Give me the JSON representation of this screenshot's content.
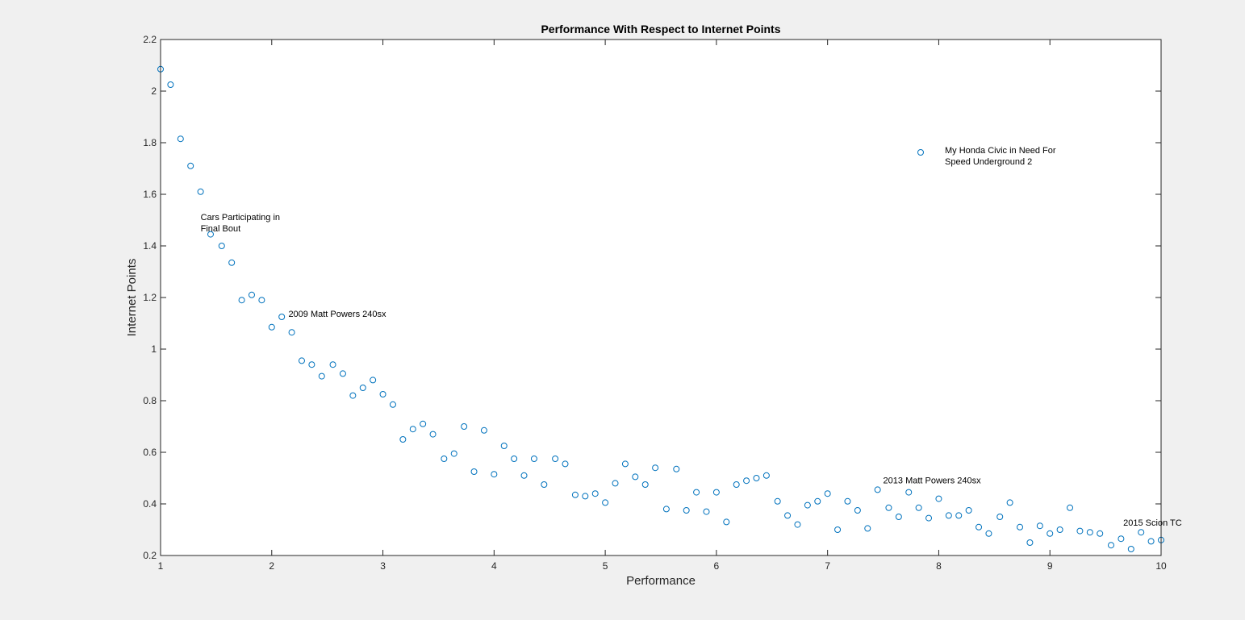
{
  "chart_data": {
    "type": "scatter",
    "title": "Performance With Respect to Internet Points",
    "xlabel": "Performance",
    "ylabel": "Internet Points",
    "xlim": [
      1,
      10
    ],
    "ylim": [
      0.2,
      2.2
    ],
    "xticks": [
      1,
      2,
      3,
      4,
      5,
      6,
      7,
      8,
      9,
      10
    ],
    "yticks": [
      0.2,
      0.4,
      0.6,
      0.8,
      1,
      1.2,
      1.4,
      1.6,
      1.8,
      2,
      2.2
    ],
    "xtick_labels": [
      "1",
      "2",
      "3",
      "4",
      "5",
      "6",
      "7",
      "8",
      "9",
      "10"
    ],
    "ytick_labels": [
      "0.2",
      "0.4",
      "0.6",
      "0.8",
      "1",
      "1.2",
      "1.4",
      "1.6",
      "1.8",
      "2",
      "2.2"
    ],
    "grid": false,
    "marker_color": "#0072bd",
    "legend_position": "top-right",
    "series": [
      {
        "name": "My Honda Civic in Need For Speed Underground 2",
        "legend_lines": [
          "My Honda Civic in Need For",
          "Speed Underground 2"
        ],
        "points": [
          [
            1.0,
            2.085
          ],
          [
            1.09,
            2.025
          ],
          [
            1.18,
            1.815
          ],
          [
            1.27,
            1.71
          ],
          [
            1.36,
            1.61
          ],
          [
            1.45,
            1.445
          ],
          [
            1.55,
            1.4
          ],
          [
            1.64,
            1.335
          ],
          [
            1.73,
            1.19
          ],
          [
            1.82,
            1.21
          ],
          [
            1.91,
            1.19
          ],
          [
            2.0,
            1.085
          ],
          [
            2.09,
            1.125
          ],
          [
            2.18,
            1.065
          ],
          [
            2.27,
            0.955
          ],
          [
            2.36,
            0.94
          ],
          [
            2.45,
            0.895
          ],
          [
            2.55,
            0.94
          ],
          [
            2.64,
            0.905
          ],
          [
            2.73,
            0.82
          ],
          [
            2.82,
            0.85
          ],
          [
            2.91,
            0.88
          ],
          [
            3.0,
            0.825
          ],
          [
            3.09,
            0.785
          ],
          [
            3.18,
            0.65
          ],
          [
            3.27,
            0.69
          ],
          [
            3.36,
            0.71
          ],
          [
            3.45,
            0.67
          ],
          [
            3.55,
            0.575
          ],
          [
            3.64,
            0.595
          ],
          [
            3.73,
            0.7
          ],
          [
            3.82,
            0.525
          ],
          [
            3.91,
            0.685
          ],
          [
            4.0,
            0.515
          ],
          [
            4.09,
            0.625
          ],
          [
            4.18,
            0.575
          ],
          [
            4.27,
            0.51
          ],
          [
            4.36,
            0.575
          ],
          [
            4.45,
            0.475
          ],
          [
            4.55,
            0.575
          ],
          [
            4.64,
            0.555
          ],
          [
            4.73,
            0.435
          ],
          [
            4.82,
            0.43
          ],
          [
            4.91,
            0.44
          ],
          [
            5.0,
            0.405
          ],
          [
            5.09,
            0.48
          ],
          [
            5.18,
            0.555
          ],
          [
            5.27,
            0.505
          ],
          [
            5.36,
            0.475
          ],
          [
            5.45,
            0.54
          ],
          [
            5.55,
            0.38
          ],
          [
            5.64,
            0.535
          ],
          [
            5.73,
            0.375
          ],
          [
            5.82,
            0.445
          ],
          [
            5.91,
            0.37
          ],
          [
            6.0,
            0.445
          ],
          [
            6.09,
            0.33
          ],
          [
            6.18,
            0.475
          ],
          [
            6.27,
            0.49
          ],
          [
            6.36,
            0.5
          ],
          [
            6.45,
            0.51
          ],
          [
            6.55,
            0.41
          ],
          [
            6.64,
            0.355
          ],
          [
            6.73,
            0.32
          ],
          [
            6.82,
            0.395
          ],
          [
            6.91,
            0.41
          ],
          [
            7.0,
            0.44
          ],
          [
            7.09,
            0.3
          ],
          [
            7.18,
            0.41
          ],
          [
            7.27,
            0.375
          ],
          [
            7.36,
            0.305
          ],
          [
            7.45,
            0.455
          ],
          [
            7.55,
            0.385
          ],
          [
            7.64,
            0.35
          ],
          [
            7.73,
            0.445
          ],
          [
            7.82,
            0.385
          ],
          [
            7.91,
            0.345
          ],
          [
            8.0,
            0.42
          ],
          [
            8.09,
            0.355
          ],
          [
            8.18,
            0.355
          ],
          [
            8.27,
            0.375
          ],
          [
            8.36,
            0.31
          ],
          [
            8.45,
            0.285
          ],
          [
            8.55,
            0.35
          ],
          [
            8.64,
            0.405
          ],
          [
            8.73,
            0.31
          ],
          [
            8.82,
            0.25
          ],
          [
            8.91,
            0.315
          ],
          [
            9.0,
            0.285
          ],
          [
            9.09,
            0.3
          ],
          [
            9.18,
            0.385
          ],
          [
            9.27,
            0.295
          ],
          [
            9.36,
            0.29
          ],
          [
            9.45,
            0.285
          ],
          [
            9.55,
            0.24
          ],
          [
            9.64,
            0.265
          ],
          [
            9.73,
            0.225
          ],
          [
            9.82,
            0.29
          ],
          [
            9.91,
            0.255
          ],
          [
            10.0,
            0.26
          ]
        ]
      }
    ],
    "annotations": [
      {
        "lines": [
          "Cars Participating in",
          "Final Bout"
        ],
        "x": 1.36,
        "y": 1.5
      },
      {
        "lines": [
          "2009 Matt Powers 240sx"
        ],
        "x": 2.15,
        "y": 1.125
      },
      {
        "lines": [
          "2013 Matt Powers 240sx"
        ],
        "x": 7.5,
        "y": 0.48
      },
      {
        "lines": [
          "2015 Scion TC"
        ],
        "x": 9.66,
        "y": 0.315
      }
    ]
  }
}
